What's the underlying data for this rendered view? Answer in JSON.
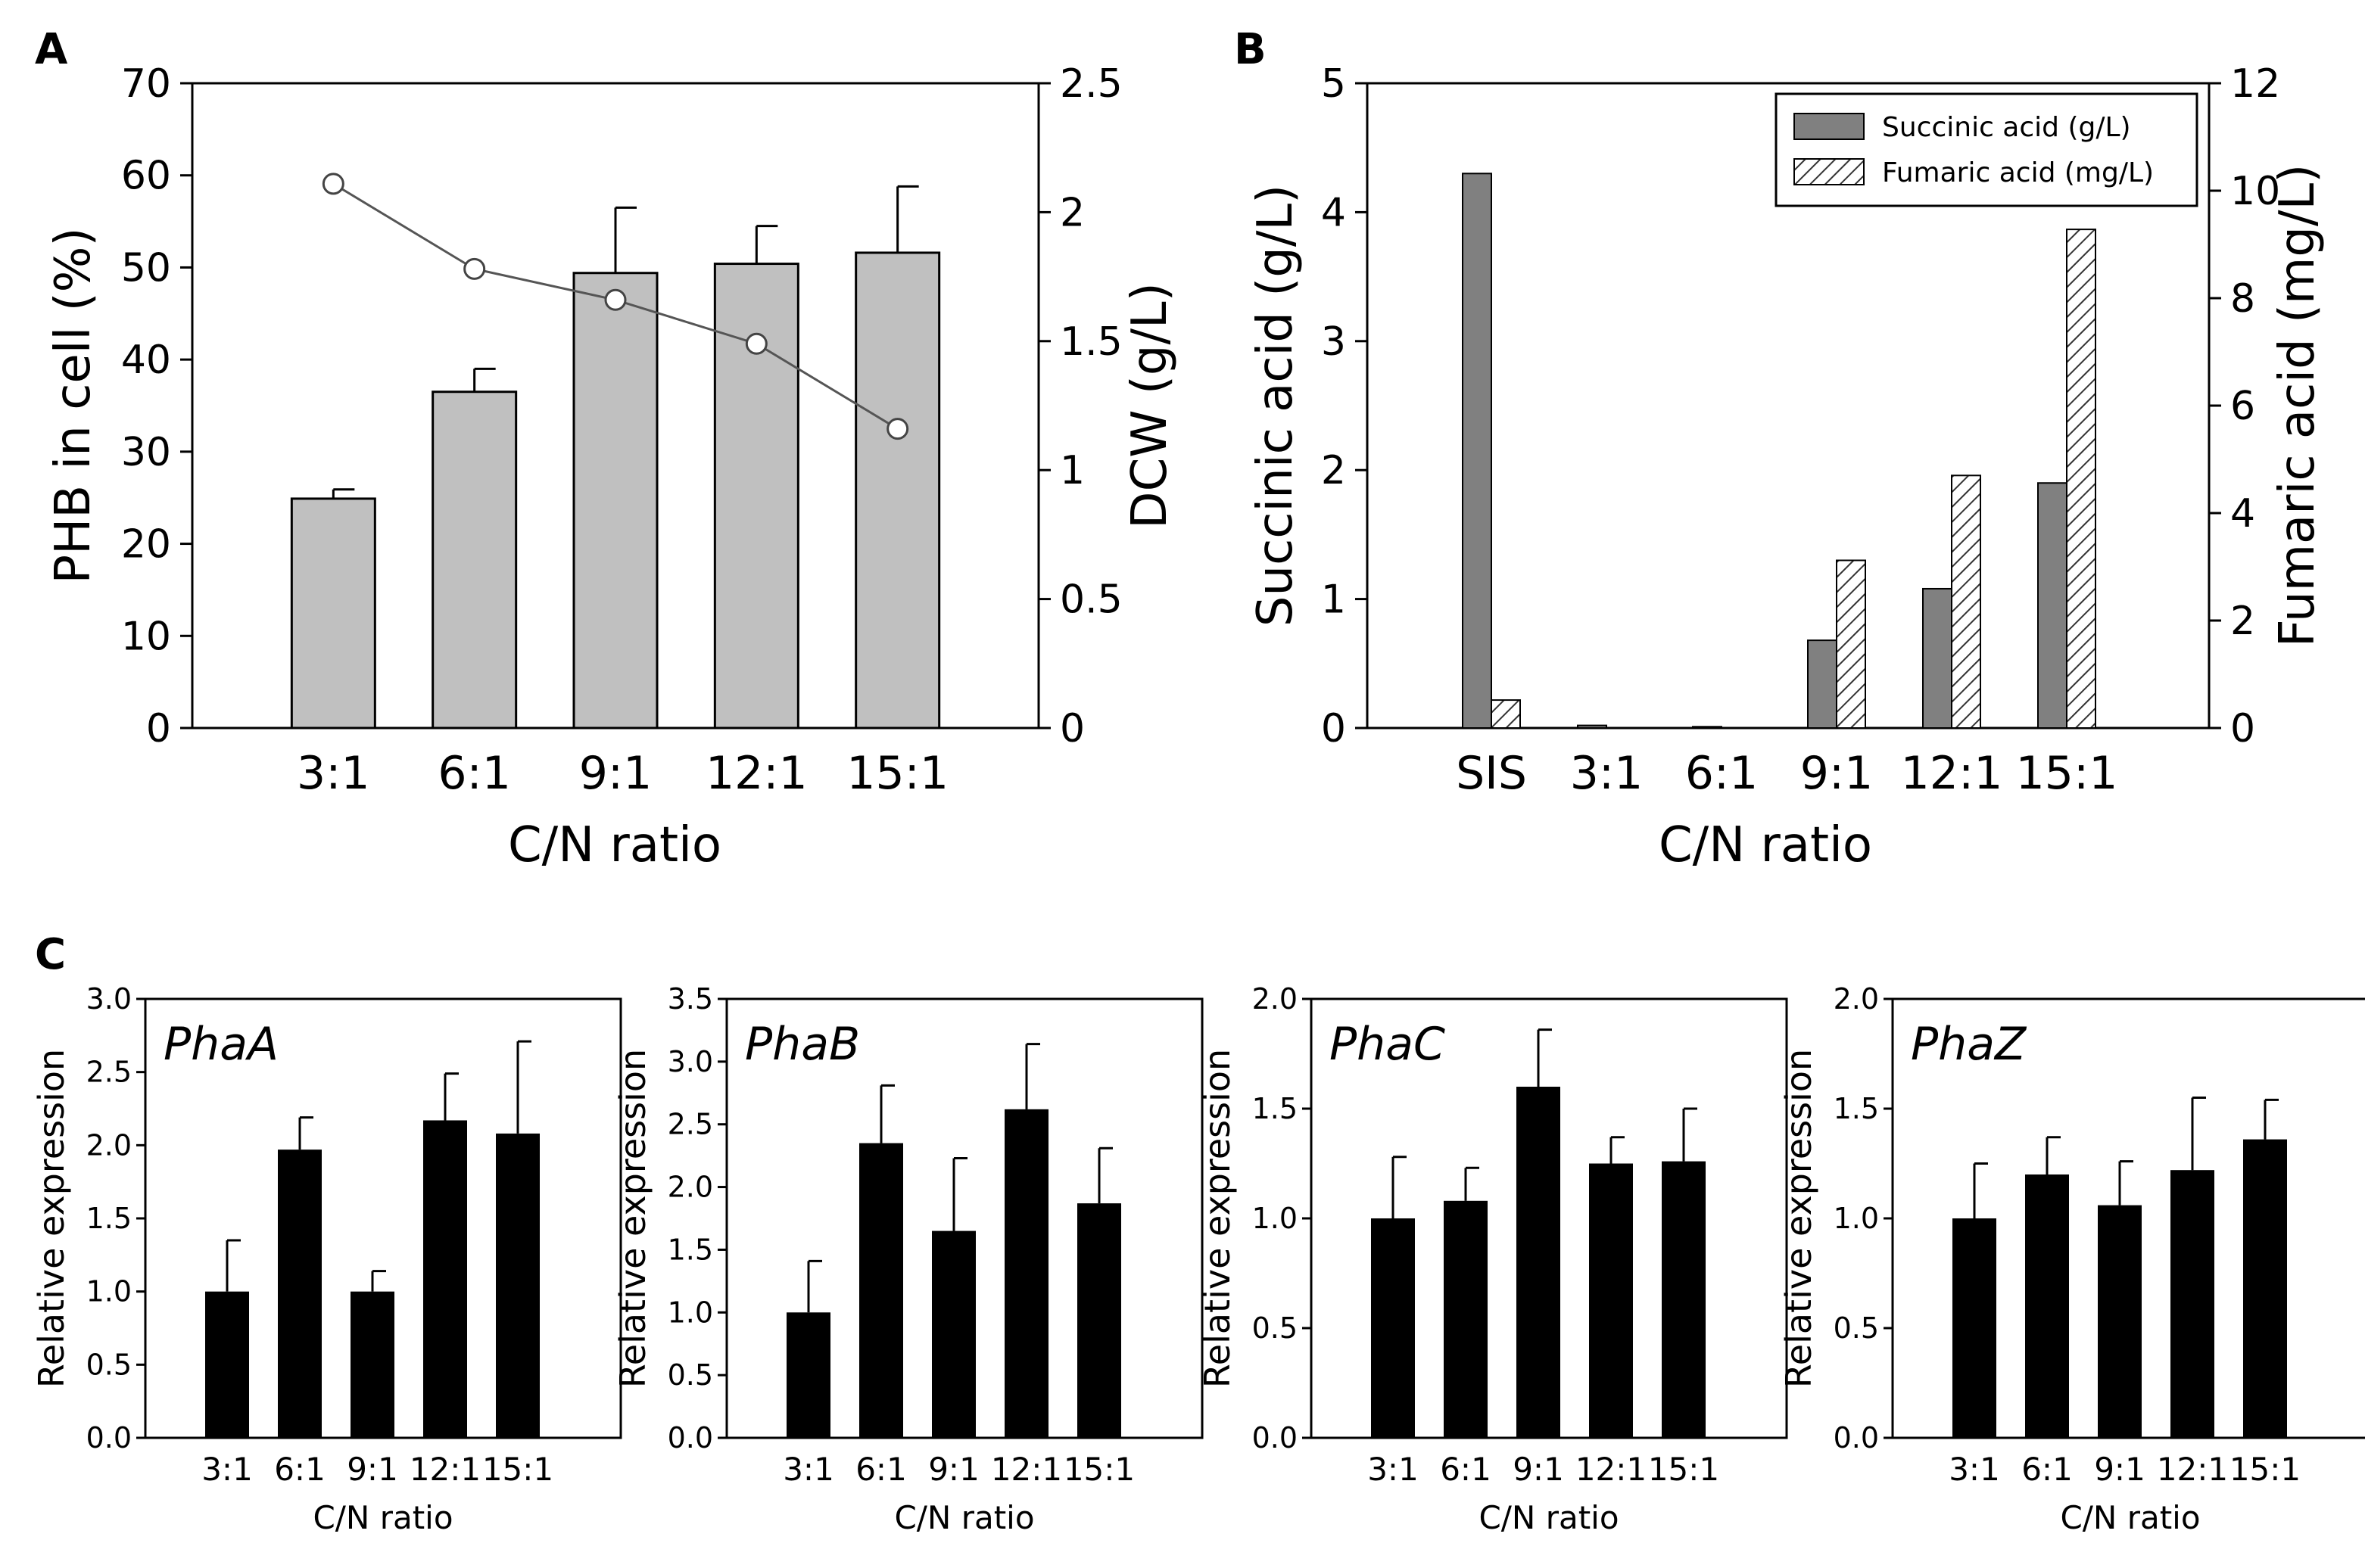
{
  "panels": {
    "A": {
      "label": "A",
      "chart_data": {
        "type": "bar",
        "categories": [
          "3:1",
          "6:1",
          "9:1",
          "12:1",
          "15:1"
        ],
        "series": [
          {
            "name": "PHB in cell (%)",
            "axis": "left",
            "kind": "bar",
            "values": [
              24.9,
              36.5,
              49.4,
              50.4,
              51.6
            ],
            "errors": [
              1.0,
              2.5,
              7.1,
              4.1,
              7.2
            ]
          },
          {
            "name": "DCW (g/L)",
            "axis": "right",
            "kind": "line",
            "values": [
              2.11,
              1.78,
              1.66,
              1.49,
              1.16
            ]
          }
        ],
        "xlabel": "C/N ratio",
        "ylabel": "PHB in cell (%)",
        "y2label": "DCW (g/L)",
        "ylim": [
          0,
          70
        ],
        "y2lim": [
          0,
          2.5
        ],
        "yticks": [
          "0",
          "10",
          "20",
          "30",
          "40",
          "50",
          "60",
          "70"
        ],
        "y2ticks": [
          "0",
          "0.5",
          "1",
          "1.5",
          "2",
          "2.5"
        ]
      }
    },
    "B": {
      "label": "B",
      "chart_data": {
        "type": "bar",
        "categories": [
          "SIS",
          "3:1",
          "6:1",
          "9:1",
          "12:1",
          "15:1"
        ],
        "series": [
          {
            "name": "Succinic acid (g/L)",
            "axis": "left",
            "pattern": "solid",
            "values": [
              4.3,
              0.02,
              0.01,
              0.68,
              1.08,
              1.9
            ]
          },
          {
            "name": "Fumaric acid (mg/L)",
            "axis": "right",
            "pattern": "hatched",
            "values": [
              0.52,
              0.0,
              0.0,
              3.12,
              4.7,
              9.28
            ]
          }
        ],
        "xlabel": "C/N ratio",
        "ylabel": "Succinic acid (g/L)",
        "y2label": "Fumaric acid (mg/L)",
        "ylim": [
          0,
          5
        ],
        "y2lim": [
          0,
          12
        ],
        "yticks": [
          "0",
          "1",
          "2",
          "3",
          "4",
          "5"
        ],
        "y2ticks": [
          "0",
          "2",
          "4",
          "6",
          "8",
          "10",
          "12"
        ],
        "legend": [
          "Succinic acid (g/L)",
          "Fumaric acid (mg/L)"
        ],
        "legend_position": "top-right"
      }
    },
    "C": {
      "label": "C",
      "chart_data": [
        {
          "type": "bar",
          "gene": "PhaA",
          "categories": [
            "3:1",
            "6:1",
            "9:1",
            "12:1",
            "15:1"
          ],
          "values": [
            1.0,
            1.97,
            1.0,
            2.17,
            2.08
          ],
          "errors": [
            0.35,
            0.22,
            0.14,
            0.32,
            0.63
          ],
          "xlabel": "C/N ratio",
          "ylabel": "Relative expression",
          "ylim": [
            0,
            3.0
          ],
          "yticks": [
            "0.0",
            "0.5",
            "1.0",
            "1.5",
            "2.0",
            "2.5",
            "3.0"
          ]
        },
        {
          "type": "bar",
          "gene": "PhaB",
          "categories": [
            "3:1",
            "6:1",
            "9:1",
            "12:1",
            "15:1"
          ],
          "values": [
            1.0,
            2.35,
            1.65,
            2.62,
            1.87
          ],
          "errors": [
            0.41,
            0.46,
            0.58,
            0.52,
            0.44
          ],
          "xlabel": "C/N ratio",
          "ylabel": "Relative expression",
          "ylim": [
            0,
            3.5
          ],
          "yticks": [
            "0.0",
            "0.5",
            "1.0",
            "1.5",
            "2.0",
            "2.5",
            "3.0",
            "3.5"
          ]
        },
        {
          "type": "bar",
          "gene": "PhaC",
          "categories": [
            "3:1",
            "6:1",
            "9:1",
            "12:1",
            "15:1"
          ],
          "values": [
            1.0,
            1.08,
            1.6,
            1.25,
            1.26
          ],
          "errors": [
            0.28,
            0.15,
            0.26,
            0.12,
            0.24
          ],
          "xlabel": "C/N ratio",
          "ylabel": "Relative expression",
          "ylim": [
            0,
            2.0
          ],
          "yticks": [
            "0.0",
            "0.5",
            "1.0",
            "1.5",
            "2.0"
          ]
        },
        {
          "type": "bar",
          "gene": "PhaZ",
          "categories": [
            "3:1",
            "6:1",
            "9:1",
            "12:1",
            "15:1"
          ],
          "values": [
            1.0,
            1.2,
            1.06,
            1.22,
            1.36
          ],
          "errors": [
            0.25,
            0.17,
            0.2,
            0.33,
            0.18
          ],
          "xlabel": "C/N ratio",
          "ylabel": "Relative expression",
          "ylim": [
            0,
            2.0
          ],
          "yticks": [
            "0.0",
            "0.5",
            "1.0",
            "1.5",
            "2.0"
          ]
        }
      ]
    }
  }
}
